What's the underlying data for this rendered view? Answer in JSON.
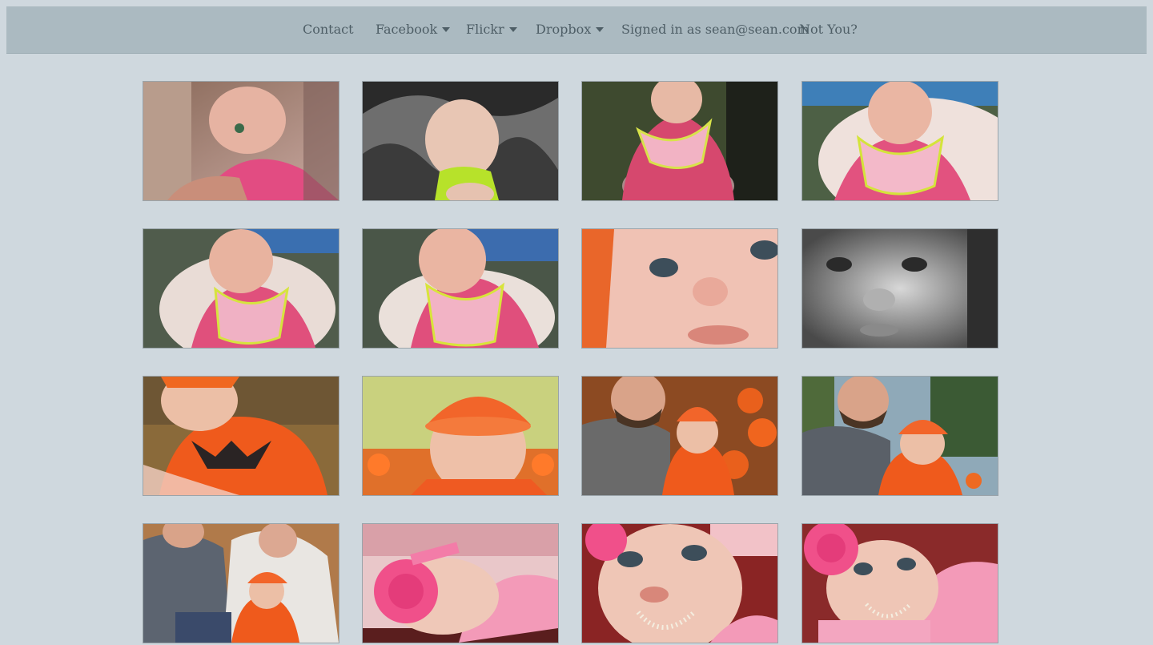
{
  "nav": {
    "contact": "Contact",
    "facebook": "Facebook",
    "flickr": "Flickr",
    "dropbox": "Dropbox",
    "signed_in": "Signed in as sean@sean.com",
    "not_you": "Not You?"
  },
  "colors": {
    "page_bg": "#cfd8de",
    "navbar_bg": "#abbac1",
    "nav_text": "#4e5e66"
  },
  "photos": [
    {
      "id": 1,
      "subject": "baby-feeding-photo"
    },
    {
      "id": 2,
      "subject": "baby-sleeping-photo"
    },
    {
      "id": 3,
      "subject": "baby-in-seat-photo"
    },
    {
      "id": 4,
      "subject": "baby-bib-closeup-photo"
    },
    {
      "id": 5,
      "subject": "baby-looking-side-photo"
    },
    {
      "id": 6,
      "subject": "baby-bib-photo"
    },
    {
      "id": 7,
      "subject": "baby-face-closeup-photo"
    },
    {
      "id": 8,
      "subject": "baby-face-bw-photo"
    },
    {
      "id": 9,
      "subject": "baby-pumpkin-costume-photo"
    },
    {
      "id": 10,
      "subject": "baby-orange-hat-photo"
    },
    {
      "id": 11,
      "subject": "father-and-baby-pumpkins-photo"
    },
    {
      "id": 12,
      "subject": "father-and-baby-outdoor-photo"
    },
    {
      "id": 13,
      "subject": "family-pumpkin-patch-photo"
    },
    {
      "id": 14,
      "subject": "baby-pink-flower-headband-photo"
    },
    {
      "id": 15,
      "subject": "baby-pearls-photo"
    },
    {
      "id": 16,
      "subject": "baby-pink-flower-pearls-photo"
    }
  ]
}
